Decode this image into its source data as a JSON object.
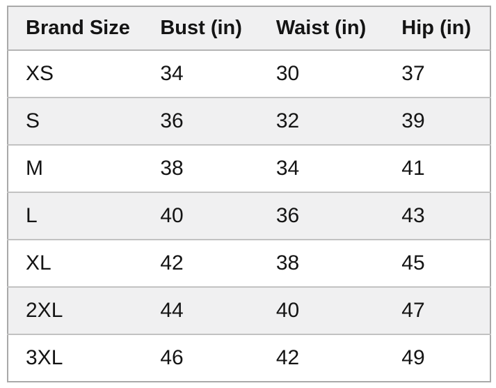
{
  "page": {
    "background": "#ffffff"
  },
  "table": {
    "title": "size-chart",
    "columns": [
      "Brand Size",
      "Bust (in)",
      "Waist (in)",
      "Hip (in)"
    ],
    "rows": [
      [
        "XS",
        "34",
        "30",
        "37"
      ],
      [
        "S",
        "36",
        "32",
        "39"
      ],
      [
        "M",
        "38",
        "34",
        "41"
      ],
      [
        "L",
        "40",
        "36",
        "43"
      ],
      [
        "XL",
        "42",
        "38",
        "45"
      ],
      [
        "2XL",
        "44",
        "40",
        "47"
      ],
      [
        "3XL",
        "46",
        "42",
        "49"
      ]
    ],
    "colors": {
      "header_bg": "#f0f0f1",
      "row_bg": "#ffffff",
      "row_alt_bg": "#f0f0f1",
      "outer_border": "#a9a9a9",
      "inner_border": "#c2c2c2",
      "text": "#141414"
    }
  }
}
